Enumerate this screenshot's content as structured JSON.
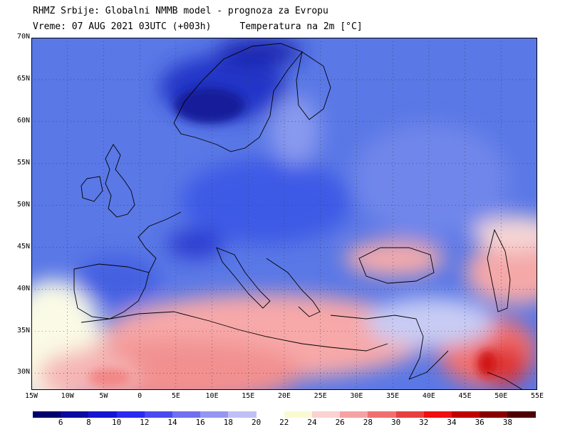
{
  "header": {
    "line1": "RHMZ Srbije: Globalni NMMB model - prognoza za Evropu",
    "line2_left": "Vreme: 07 AUG 2021 03UTC (+003h)",
    "line2_right": "Temperatura na 2m [°C]"
  },
  "map": {
    "lat_labels": [
      "70N",
      "65N",
      "60N",
      "55N",
      "50N",
      "45N",
      "40N",
      "35N",
      "30N"
    ],
    "lat_values": [
      70,
      65,
      60,
      55,
      50,
      45,
      40,
      35,
      30
    ],
    "lon_labels": [
      "15W",
      "10W",
      "5W",
      "0",
      "5E",
      "10E",
      "15E",
      "20E",
      "25E",
      "30E",
      "35E",
      "40E",
      "45E",
      "50E",
      "55E"
    ],
    "lon_values": [
      -15,
      -10,
      -5,
      0,
      5,
      10,
      15,
      20,
      25,
      30,
      35,
      40,
      45,
      50,
      55
    ],
    "lon_range": [
      -15,
      55
    ],
    "lat_range": [
      28,
      70
    ],
    "grid": "dotted",
    "field": "2m temperature",
    "colors": {
      "ocean_default": "#5a7ae6",
      "cold_scandinavia": "#1f2fbf",
      "warm_mediterranean": "#f7a2a2",
      "hot_mideast": "#e83030"
    }
  },
  "colorbar": {
    "labels": [
      "6",
      "8",
      "10",
      "12",
      "14",
      "16",
      "18",
      "20",
      "22",
      "24",
      "26",
      "28",
      "30",
      "32",
      "34",
      "36",
      "38"
    ],
    "colors": [
      "#00006e",
      "#0a0aa0",
      "#1414d2",
      "#2a2af0",
      "#4a4af0",
      "#7070f0",
      "#9696f2",
      "#c0c0f6",
      "#ffffff",
      "#fafad0",
      "#fad2d2",
      "#f7a2a2",
      "#f07070",
      "#e84040",
      "#f01010",
      "#c00000",
      "#8a0000",
      "#500000"
    ]
  }
}
